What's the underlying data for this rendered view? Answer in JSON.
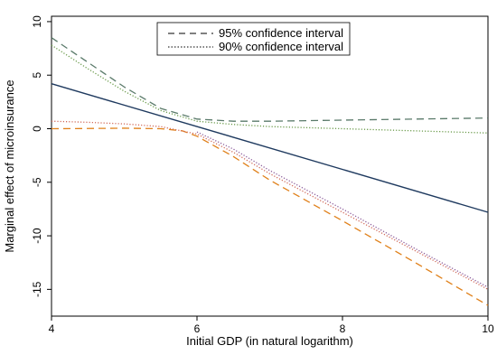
{
  "chart_data": {
    "type": "line",
    "title": "",
    "xlabel": "Initial GDP (in natural logarithm)",
    "ylabel": "Marginal effect of microinsurance",
    "xlim": [
      4,
      10
    ],
    "ylim": [
      -17.5,
      10.5
    ],
    "xticks": [
      4,
      6,
      8,
      10
    ],
    "yticks": [
      10,
      5,
      0,
      -5,
      -10,
      -15
    ],
    "ytick_labels": [
      "10",
      "5",
      "0",
      "-5",
      "-10",
      "-15"
    ],
    "grid": false,
    "legend_position": "top-center",
    "legend": [
      {
        "label": "95% confidence interval",
        "style": "dashed"
      },
      {
        "label": "90% confidence interval",
        "style": "dotted"
      }
    ],
    "series": [
      {
        "style": "solid",
        "color": "#1f3a5f",
        "x": [
          4,
          10
        ],
        "y": [
          4.2,
          -7.8
        ]
      },
      {
        "style": "dashed",
        "color": "#5a7a6a",
        "x": [
          4,
          4.5,
          5,
          5.5,
          6,
          6.5,
          7,
          8,
          9,
          10
        ],
        "y": [
          8.5,
          6.2,
          3.9,
          1.9,
          0.9,
          0.7,
          0.7,
          0.8,
          0.9,
          1.0
        ]
      },
      {
        "style": "dotted",
        "color": "#6a9a4a",
        "x": [
          4,
          4.5,
          5,
          5.5,
          6,
          6.5,
          7,
          8,
          9,
          10
        ],
        "y": [
          7.8,
          5.6,
          3.5,
          1.7,
          0.7,
          0.4,
          0.2,
          0.0,
          -0.2,
          -0.4
        ]
      },
      {
        "style": "dashed",
        "color": "#e0801a",
        "x": [
          4,
          4.5,
          5,
          5.5,
          5.8,
          6,
          6.5,
          7,
          8,
          9,
          10
        ],
        "y": [
          0.0,
          0.02,
          0.05,
          0.0,
          -0.2,
          -0.7,
          -2.6,
          -4.8,
          -8.6,
          -12.5,
          -16.5
        ]
      },
      {
        "style": "dotted",
        "color": "#d06a5a",
        "x": [
          4,
          4.5,
          5,
          5.5,
          6,
          6.5,
          7,
          8,
          9,
          10
        ],
        "y": [
          0.7,
          0.6,
          0.45,
          0.2,
          -0.5,
          -2.2,
          -4.2,
          -7.8,
          -11.4,
          -15.0
        ]
      },
      {
        "style": "dotted",
        "color": "#8a5a9a",
        "x": [
          6,
          6.5,
          7,
          8,
          9,
          10
        ],
        "y": [
          -0.3,
          -1.9,
          -3.9,
          -7.5,
          -11.2,
          -14.8
        ]
      }
    ]
  }
}
